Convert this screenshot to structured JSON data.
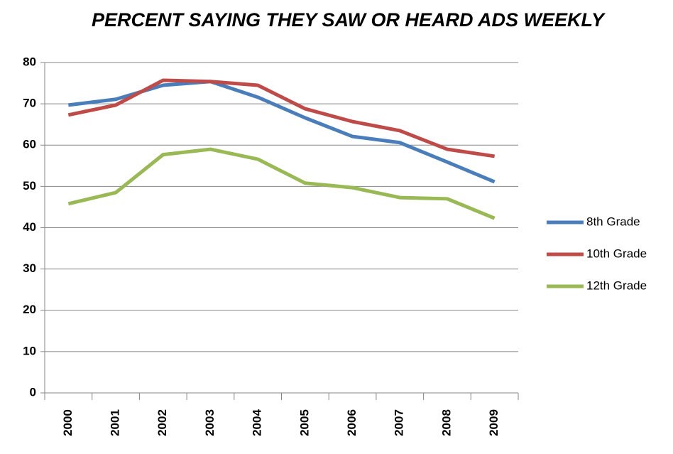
{
  "chart_data": {
    "type": "line",
    "title": "PERCENT SAYING THEY SAW OR HEARD ADS WEEKLY",
    "categories": [
      "2000",
      "2001",
      "2002",
      "2003",
      "2004",
      "2005",
      "2006",
      "2007",
      "2008",
      "2009"
    ],
    "series": [
      {
        "name": "8th Grade",
        "color": "#4a7ebb",
        "values": [
          69.7,
          71.1,
          74.5,
          75.4,
          71.6,
          66.6,
          62.1,
          60.6,
          55.9,
          51.1
        ]
      },
      {
        "name": "10th Grade",
        "color": "#be4b48",
        "values": [
          67.3,
          69.7,
          75.7,
          75.4,
          74.5,
          68.8,
          65.7,
          63.5,
          59,
          57.3
        ]
      },
      {
        "name": "12th Grade",
        "color": "#98b954",
        "values": [
          45.8,
          48.5,
          57.7,
          59,
          56.6,
          50.8,
          49.7,
          47.3,
          47,
          42.3
        ]
      }
    ],
    "ylim": [
      0,
      80
    ],
    "yticks": [
      0,
      10,
      20,
      30,
      40,
      50,
      60,
      70,
      80
    ],
    "grid": true,
    "legend": "right"
  }
}
